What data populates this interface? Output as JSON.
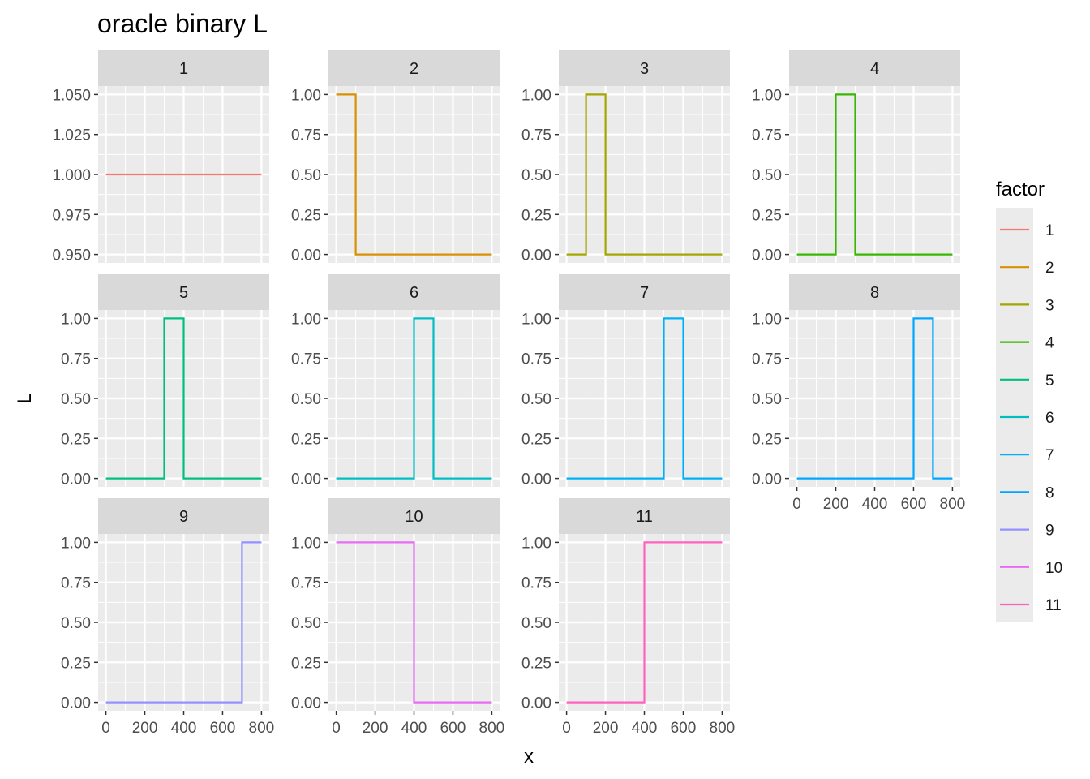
{
  "chart_data": {
    "type": "line",
    "title": "oracle binary L",
    "xlabel": "x",
    "ylabel": "L",
    "legend": {
      "title": "factor",
      "position": "right"
    },
    "x_ticks": [
      0,
      200,
      400,
      600,
      800
    ],
    "xlim": [
      0,
      800
    ],
    "facets": [
      {
        "name": "1",
        "color": "#F8766D",
        "y_ticks": [
          "0.950",
          "0.975",
          "1.000",
          "1.025",
          "1.050"
        ],
        "ylim": [
          0.95,
          1.05
        ],
        "points": [
          [
            0,
            1
          ],
          [
            800,
            1
          ]
        ]
      },
      {
        "name": "2",
        "color": "#D89000",
        "y_ticks": [
          "0.00",
          "0.25",
          "0.50",
          "0.75",
          "1.00"
        ],
        "ylim": [
          0,
          1
        ],
        "points": [
          [
            0,
            1
          ],
          [
            100,
            1
          ],
          [
            100,
            0
          ],
          [
            800,
            0
          ]
        ]
      },
      {
        "name": "3",
        "color": "#A3A500",
        "y_ticks": [
          "0.00",
          "0.25",
          "0.50",
          "0.75",
          "1.00"
        ],
        "ylim": [
          0,
          1
        ],
        "points": [
          [
            0,
            0
          ],
          [
            100,
            0
          ],
          [
            100,
            1
          ],
          [
            200,
            1
          ],
          [
            200,
            0
          ],
          [
            800,
            0
          ]
        ]
      },
      {
        "name": "4",
        "color": "#39B600",
        "y_ticks": [
          "0.00",
          "0.25",
          "0.50",
          "0.75",
          "1.00"
        ],
        "ylim": [
          0,
          1
        ],
        "points": [
          [
            0,
            0
          ],
          [
            200,
            0
          ],
          [
            200,
            1
          ],
          [
            300,
            1
          ],
          [
            300,
            0
          ],
          [
            800,
            0
          ]
        ]
      },
      {
        "name": "5",
        "color": "#00BF7D",
        "y_ticks": [
          "0.00",
          "0.25",
          "0.50",
          "0.75",
          "1.00"
        ],
        "ylim": [
          0,
          1
        ],
        "points": [
          [
            0,
            0
          ],
          [
            300,
            0
          ],
          [
            300,
            1
          ],
          [
            400,
            1
          ],
          [
            400,
            0
          ],
          [
            800,
            0
          ]
        ]
      },
      {
        "name": "6",
        "color": "#00BFC4",
        "y_ticks": [
          "0.00",
          "0.25",
          "0.50",
          "0.75",
          "1.00"
        ],
        "ylim": [
          0,
          1
        ],
        "points": [
          [
            0,
            0
          ],
          [
            400,
            0
          ],
          [
            400,
            1
          ],
          [
            500,
            1
          ],
          [
            500,
            0
          ],
          [
            800,
            0
          ]
        ]
      },
      {
        "name": "7",
        "color": "#00B0F6",
        "y_ticks": [
          "0.00",
          "0.25",
          "0.50",
          "0.75",
          "1.00"
        ],
        "ylim": [
          0,
          1
        ],
        "points": [
          [
            0,
            0
          ],
          [
            500,
            0
          ],
          [
            500,
            1
          ],
          [
            600,
            1
          ],
          [
            600,
            0
          ],
          [
            800,
            0
          ]
        ]
      },
      {
        "name": "8",
        "color": "#00A5FF",
        "y_ticks": [
          "0.00",
          "0.25",
          "0.50",
          "0.75",
          "1.00"
        ],
        "ylim": [
          0,
          1
        ],
        "points": [
          [
            0,
            0
          ],
          [
            600,
            0
          ],
          [
            600,
            1
          ],
          [
            700,
            1
          ],
          [
            700,
            0
          ],
          [
            800,
            0
          ]
        ]
      },
      {
        "name": "9",
        "color": "#9590FF",
        "y_ticks": [
          "0.00",
          "0.25",
          "0.50",
          "0.75",
          "1.00"
        ],
        "ylim": [
          0,
          1
        ],
        "points": [
          [
            0,
            0
          ],
          [
            700,
            0
          ],
          [
            700,
            1
          ],
          [
            800,
            1
          ]
        ]
      },
      {
        "name": "10",
        "color": "#E76BF3",
        "y_ticks": [
          "0.00",
          "0.25",
          "0.50",
          "0.75",
          "1.00"
        ],
        "ylim": [
          0,
          1
        ],
        "points": [
          [
            0,
            1
          ],
          [
            400,
            1
          ],
          [
            400,
            0
          ],
          [
            800,
            0
          ]
        ]
      },
      {
        "name": "11",
        "color": "#FF62BC",
        "y_ticks": [
          "0.00",
          "0.25",
          "0.50",
          "0.75",
          "1.00"
        ],
        "ylim": [
          0,
          1
        ],
        "points": [
          [
            0,
            0
          ],
          [
            400,
            0
          ],
          [
            400,
            1
          ],
          [
            800,
            1
          ]
        ]
      }
    ]
  }
}
